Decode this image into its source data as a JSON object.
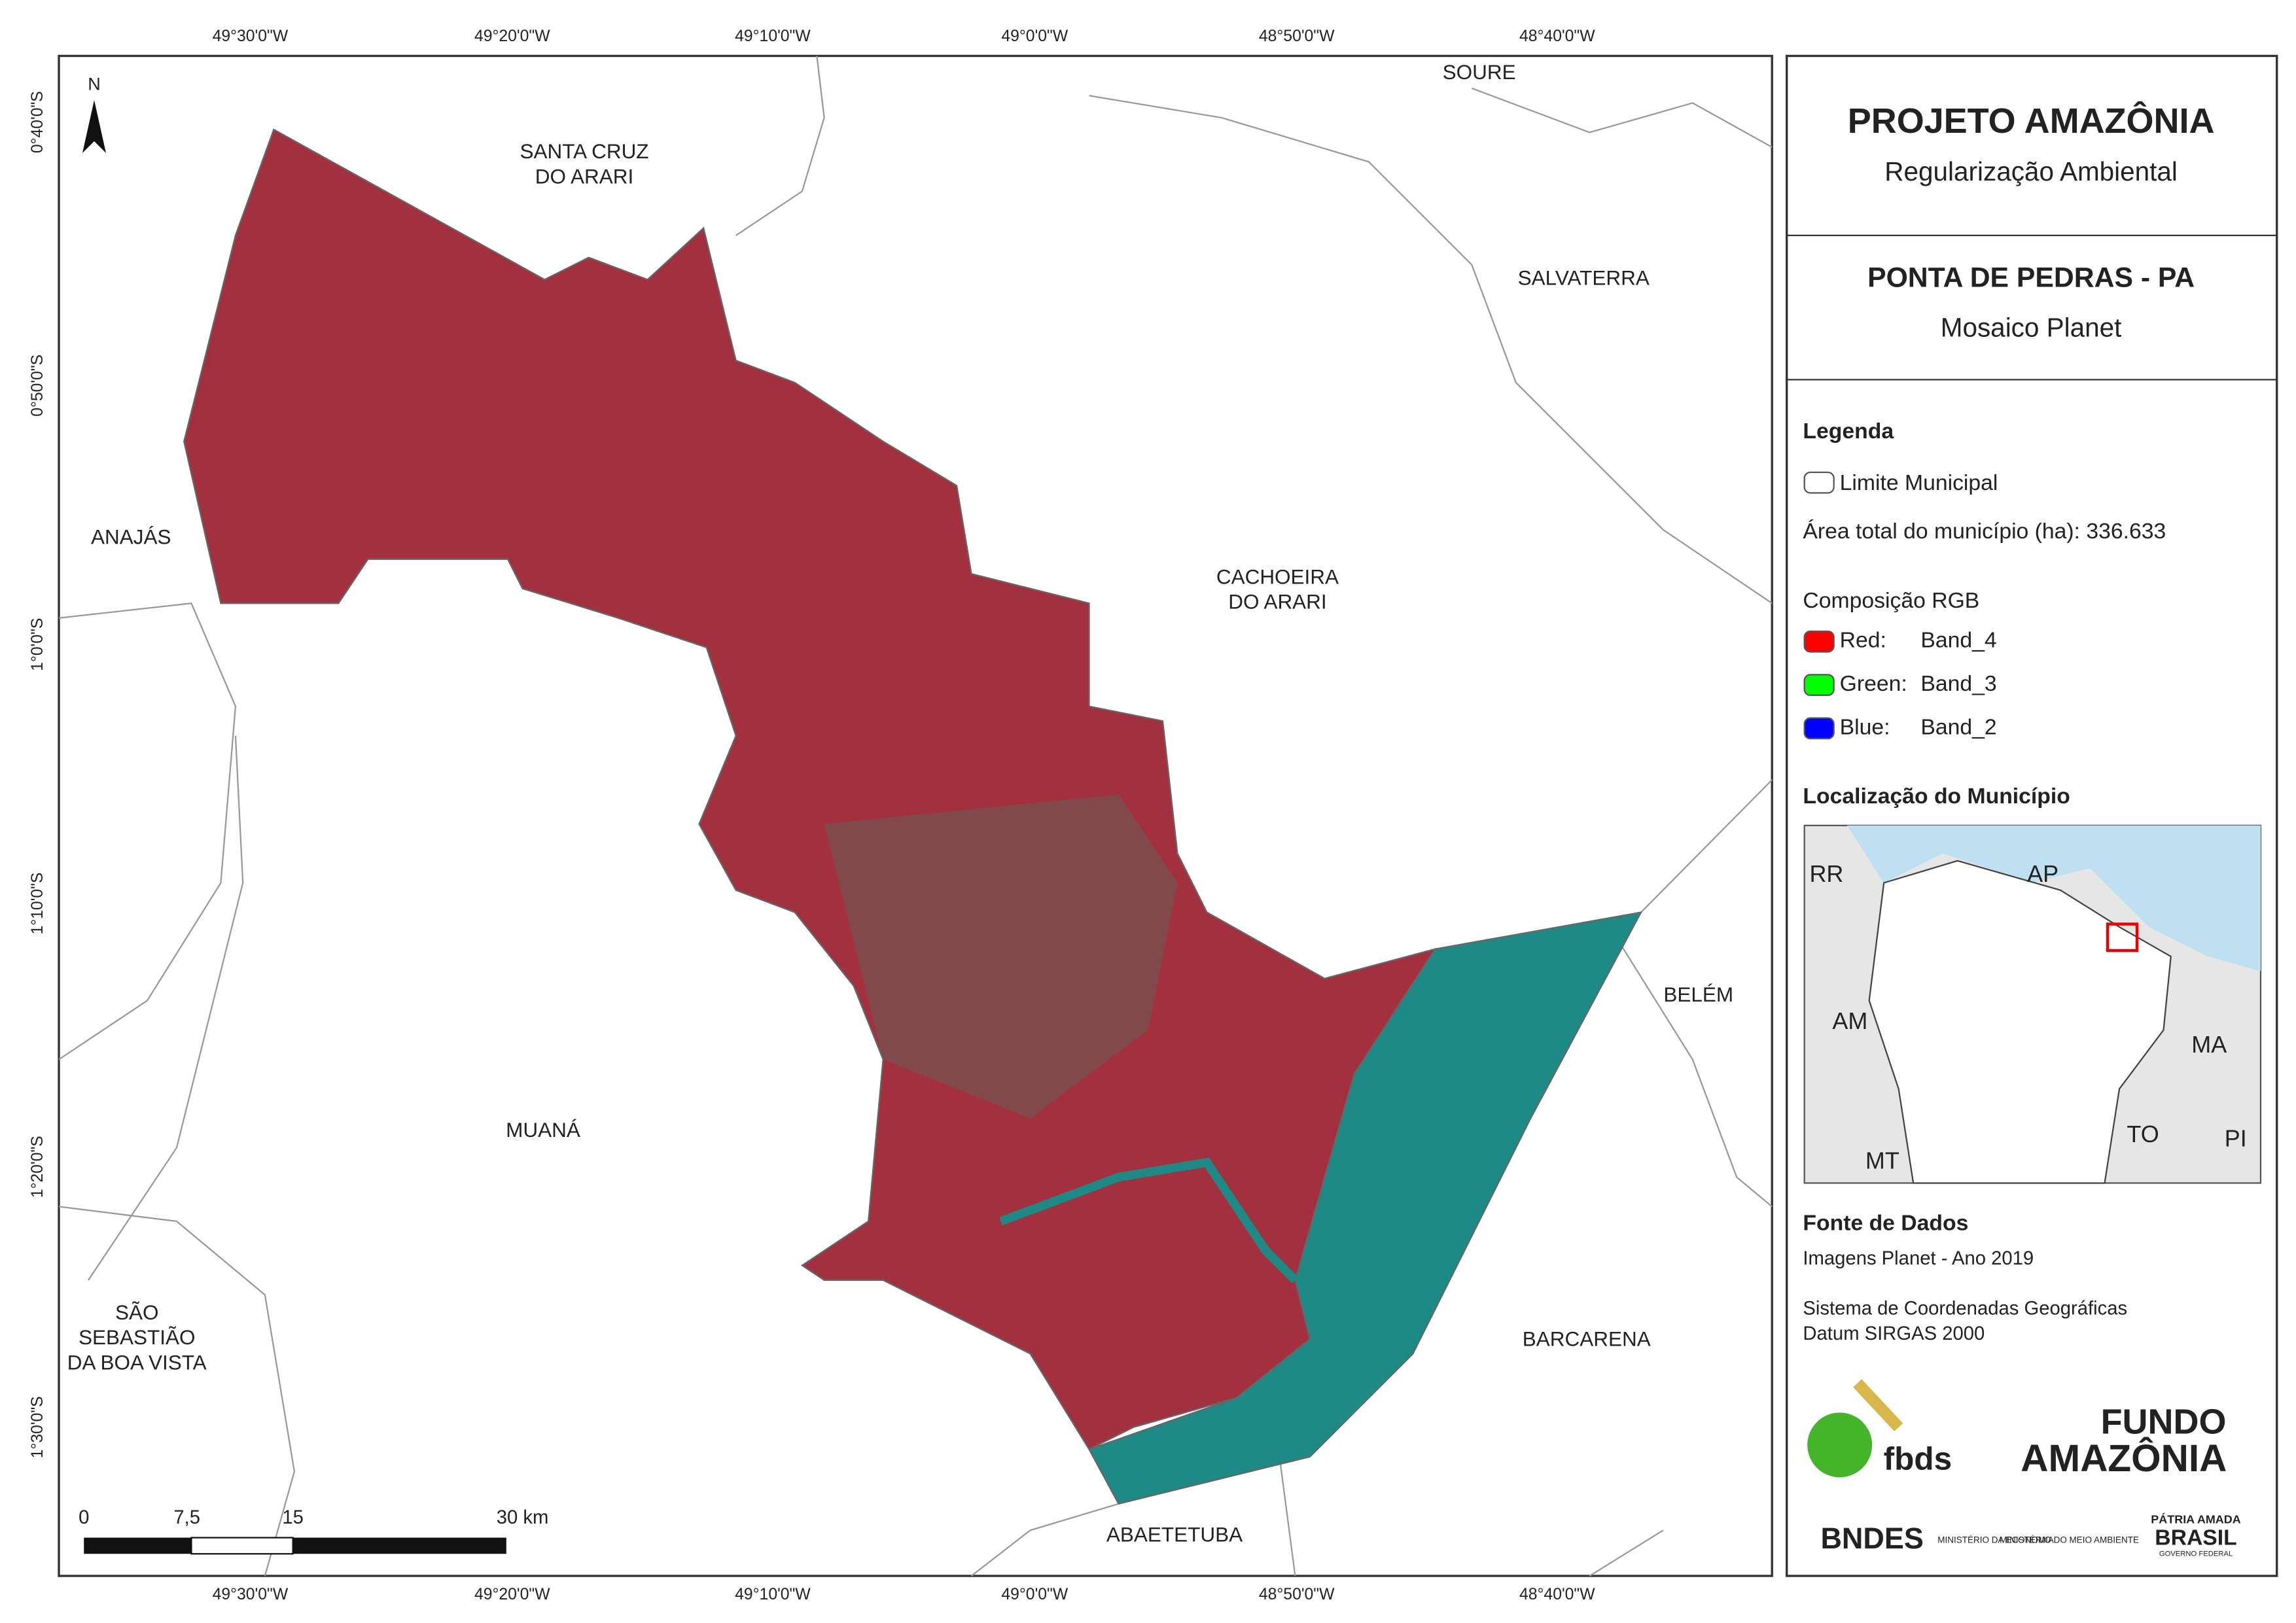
{
  "frame": {
    "top_ticks": [
      "49°30'0\"W",
      "49°20'0\"W",
      "49°10'0\"W",
      "49°0'0\"W",
      "48°50'0\"W",
      "48°40'0\"W"
    ],
    "bottom_ticks": [
      "49°30'0\"W",
      "49°20'0\"W",
      "49°10'0\"W",
      "49°0'0\"W",
      "48°50'0\"W",
      "48°40'0\"W"
    ],
    "left_ticks": [
      "0°40'0\"S",
      "0°50'0\"S",
      "1°0'0\"S",
      "1°10'0\"S",
      "1°20'0\"S",
      "1°30'0\"S"
    ]
  },
  "map": {
    "north": "N",
    "places": [
      {
        "lines": [
          "SOURE"
        ]
      },
      {
        "lines": [
          "SANTA CRUZ",
          "DO ARARI"
        ]
      },
      {
        "lines": [
          "SALVATERRA"
        ]
      },
      {
        "lines": [
          "ANAJÁS"
        ]
      },
      {
        "lines": [
          "CACHOEIRA",
          "DO ARARI"
        ]
      },
      {
        "lines": [
          "BELÉM"
        ]
      },
      {
        "lines": [
          "MUANÁ"
        ]
      },
      {
        "lines": [
          "SÃO",
          "SEBASTIÃO",
          "DA BOA VISTA"
        ]
      },
      {
        "lines": [
          "BARCARENA"
        ]
      },
      {
        "lines": [
          "ABAETETUBA"
        ]
      }
    ],
    "scale_labels": [
      "0",
      "7,5",
      "15",
      "30 km"
    ]
  },
  "panel": {
    "title": "PROJETO AMAZÔNIA",
    "subtitle": "Regularização Ambiental",
    "area": "PONTA DE PEDRAS - PA",
    "product": "Mosaico Planet",
    "legend_title": "Legenda",
    "boundary": "Limite Municipal",
    "total_area": "Área total do município (ha): 336.633",
    "rgb_title": "Composição RGB",
    "bands": [
      {
        "channel": "Red:",
        "band": "Band_4",
        "color": "#ff0000"
      },
      {
        "channel": "Green:",
        "band": "Band_3",
        "color": "#00ff00"
      },
      {
        "channel": "Blue:",
        "band": "Band_2",
        "color": "#0000ff"
      }
    ],
    "location_title": "Localização do Município",
    "inset_labels": [
      "RR",
      "AP",
      "AM",
      "MA",
      "TO",
      "MT",
      "PI"
    ],
    "sources_title": "Fonte de Dados",
    "sources": [
      "Imagens Planet - Ano 2019",
      "Sistema de Coordenadas Geográficas",
      "Datum SIRGAS 2000"
    ],
    "logos": [
      "fbds",
      "FUNDO",
      "AMAZÔNIA",
      "BNDES",
      "MINISTÉRIO DA ECONOMIA",
      "MINISTÉRIO DO MEIO AMBIENTE",
      "PÁTRIA AMADA",
      "BRASIL",
      "GOVERNO FEDERAL"
    ]
  }
}
